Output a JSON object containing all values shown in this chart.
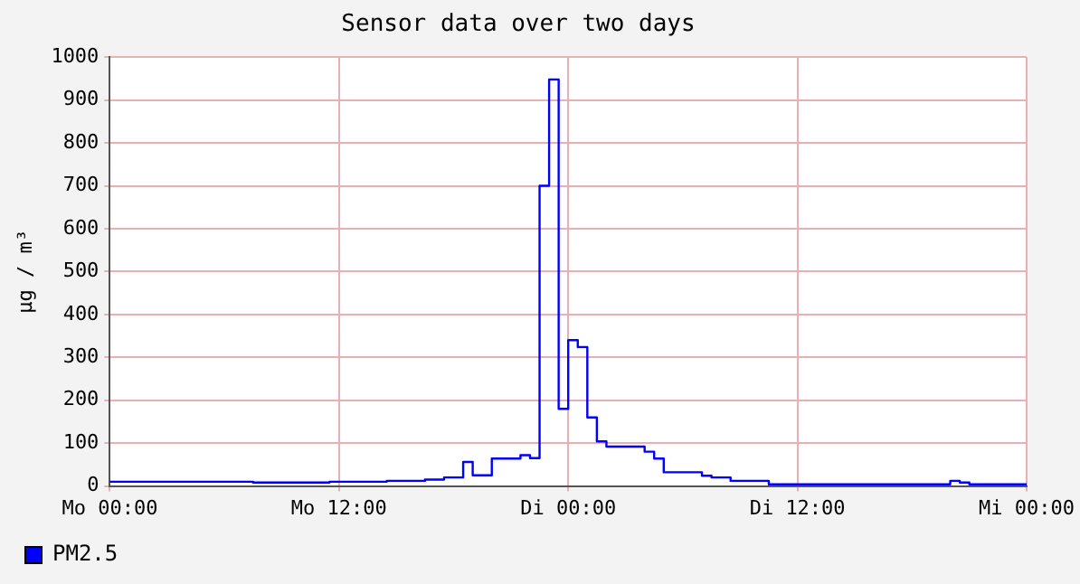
{
  "chart_data": {
    "type": "step",
    "title": "Sensor data over two days",
    "ylabel": "µg / m³",
    "categories": [
      "Mo 00:00",
      null,
      null,
      null,
      null,
      null,
      null,
      null,
      null,
      null,
      null,
      null,
      null,
      null,
      null,
      null,
      null,
      null,
      null,
      null,
      null,
      null,
      null,
      null,
      "Mo 12:00",
      null,
      null,
      null,
      null,
      null,
      null,
      null,
      null,
      null,
      null,
      null,
      null,
      null,
      null,
      null,
      null,
      null,
      null,
      null,
      null,
      null,
      null,
      null,
      "Di 00:00",
      null,
      null,
      null,
      null,
      null,
      null,
      null,
      null,
      null,
      null,
      null,
      null,
      null,
      null,
      null,
      null,
      null,
      null,
      null,
      null,
      null,
      null,
      null,
      "Di 12:00",
      null,
      null,
      null,
      null,
      null,
      null,
      null,
      null,
      null,
      null,
      null,
      null,
      null,
      null,
      null,
      null,
      null,
      null,
      null,
      null,
      null,
      null,
      null,
      "Mi 00:00"
    ],
    "series": [
      {
        "name": "PM2.5",
        "color": "#0000ff",
        "values": [
          10,
          10,
          10,
          10,
          10,
          10,
          10,
          10,
          10,
          10,
          10,
          10,
          10,
          10,
          10,
          10,
          8,
          8,
          8,
          8,
          8,
          8,
          8,
          8,
          10,
          10,
          10,
          10,
          10,
          10,
          12,
          12,
          12,
          12,
          15,
          15,
          20,
          20,
          56,
          25,
          25,
          64,
          64,
          64,
          72,
          65,
          700,
          948,
          180,
          340,
          324,
          160,
          104,
          92,
          92,
          92,
          92,
          80,
          64,
          32,
          32,
          32,
          32,
          24,
          20,
          20,
          12,
          12,
          12,
          12,
          4,
          4,
          4,
          4,
          4,
          4,
          4,
          4,
          4,
          4,
          4,
          4,
          4,
          4,
          4,
          4,
          4,
          4,
          4,
          12,
          8,
          4,
          4,
          4,
          4,
          4,
          4
        ]
      }
    ],
    "ylim": [
      0,
      1000
    ],
    "yticks": [
      0,
      100,
      200,
      300,
      400,
      500,
      600,
      700,
      800,
      900,
      1000
    ],
    "grid": true,
    "legend": "bottom left",
    "marker": "none",
    "line_style": "solid"
  }
}
